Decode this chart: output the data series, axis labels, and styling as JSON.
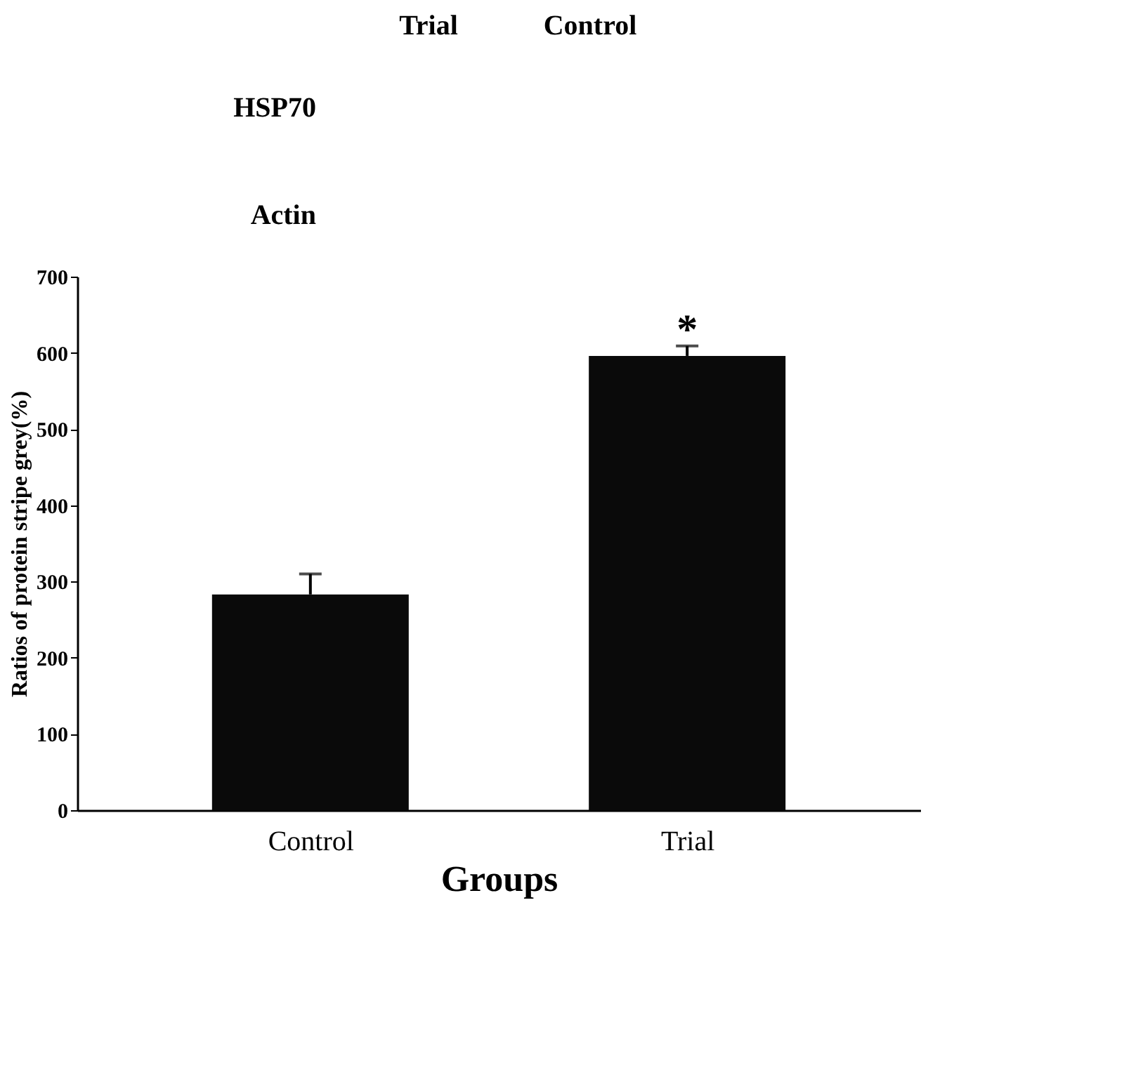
{
  "chart_data": {
    "type": "bar",
    "xlabel": "Groups",
    "ylabel": "Ratios of protein stripe grey(%)",
    "categories": [
      "Control",
      "Trial"
    ],
    "values": [
      283,
      596
    ],
    "errors": [
      [
        283,
        310
      ],
      [
        596,
        609
      ]
    ],
    "color": "#0a0a0a",
    "ylim": [
      0,
      700
    ],
    "yticks": [
      0,
      100,
      200,
      300,
      400,
      500,
      600,
      700
    ],
    "grid": false,
    "annotations": [
      "*",
      "Trial",
      "Control",
      "HSP70",
      "Actin"
    ]
  }
}
